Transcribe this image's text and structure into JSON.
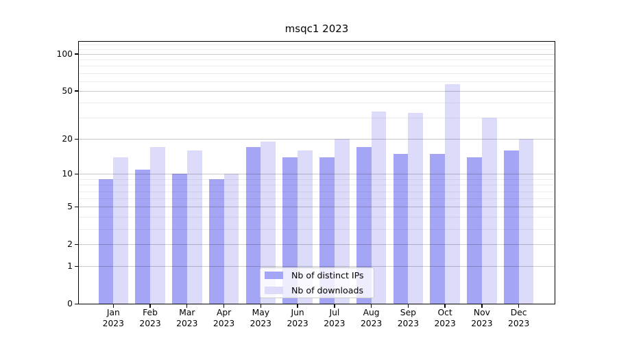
{
  "title": "msqc1 2023",
  "chart_data": {
    "type": "bar",
    "title": "msqc1 2023",
    "categories": [
      "Jan",
      "Feb",
      "Mar",
      "Apr",
      "May",
      "Jun",
      "Jul",
      "Aug",
      "Sep",
      "Oct",
      "Nov",
      "Dec"
    ],
    "year_label": "2023",
    "series": [
      {
        "name": "Nb of distinct IPs",
        "color": "#a5a5f5",
        "values": [
          9,
          11,
          10,
          9,
          17,
          14,
          14,
          17,
          15,
          15,
          14,
          16
        ]
      },
      {
        "name": "Nb of downloads",
        "color": "#dcdcfa",
        "values": [
          14,
          17,
          16,
          10,
          19,
          16,
          20,
          34,
          33,
          57,
          30,
          20
        ]
      }
    ],
    "yscale": "log1p",
    "ylim": [
      0,
      127
    ],
    "y_major_ticks": [
      0,
      1,
      2,
      5,
      10,
      20,
      50,
      100
    ],
    "y_minor_gridlines": [
      3,
      4,
      6,
      7,
      8,
      9,
      30,
      40,
      60,
      70,
      80,
      90,
      110,
      120
    ],
    "grid": true,
    "legend_position": "lower-center"
  }
}
